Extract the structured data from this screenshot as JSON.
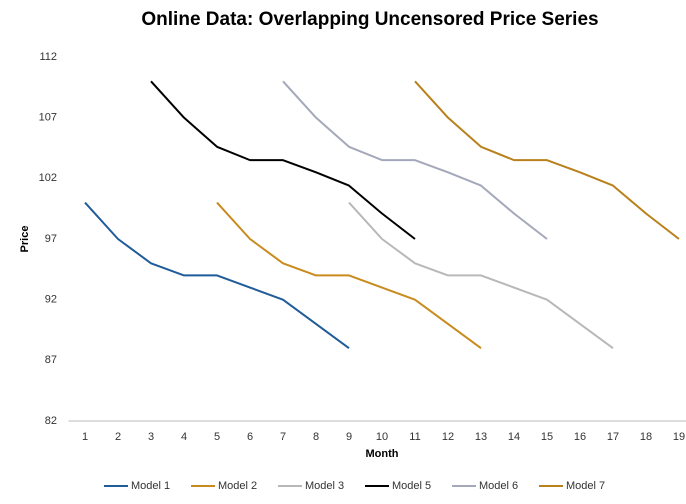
{
  "chart_data": {
    "type": "line",
    "title": "Online Data: Overlapping Uncensored Price Series",
    "x_label": "Month",
    "y_label": "Price",
    "categories": [
      "1",
      "2",
      "3",
      "4",
      "5",
      "6",
      "7",
      "8",
      "9",
      "10",
      "11",
      "12",
      "13",
      "14",
      "15",
      "16",
      "17",
      "18",
      "19"
    ],
    "ylim": [
      82,
      112
    ],
    "yticks": [
      82,
      87,
      92,
      97,
      102,
      107,
      112
    ],
    "grid": false,
    "legend": "bottom",
    "series": [
      {
        "name": "Model 1",
        "color": "#1f5c99",
        "values": [
          100,
          97,
          95,
          94,
          94,
          93,
          92,
          90,
          88,
          null,
          null,
          null,
          null,
          null,
          null,
          null,
          null,
          null,
          null
        ]
      },
      {
        "name": "Model 2",
        "color": "#c98a1e",
        "values": [
          null,
          null,
          null,
          null,
          100,
          97,
          95,
          94,
          94,
          93,
          92,
          90,
          88,
          null,
          null,
          null,
          null,
          null,
          null
        ]
      },
      {
        "name": "Model 3",
        "color": "#b8b8b8",
        "values": [
          null,
          null,
          null,
          null,
          null,
          null,
          null,
          null,
          100,
          97,
          95,
          94,
          94,
          93,
          92,
          90,
          88,
          null,
          null
        ]
      },
      {
        "name": "Model 5",
        "color": "#000000",
        "values": [
          null,
          null,
          110,
          107,
          104.6,
          103.5,
          103.5,
          102.5,
          101.4,
          99.1,
          97,
          null,
          null,
          null,
          null,
          null,
          null,
          null,
          null
        ]
      },
      {
        "name": "Model 6",
        "color": "#a4a8ba",
        "values": [
          null,
          null,
          null,
          null,
          null,
          null,
          110,
          107,
          104.6,
          103.5,
          103.5,
          102.5,
          101.4,
          99.1,
          97,
          null,
          null,
          null,
          null
        ]
      },
      {
        "name": "Model 7",
        "color": "#b9801c",
        "values": [
          null,
          null,
          null,
          null,
          null,
          null,
          null,
          null,
          null,
          null,
          110,
          107,
          104.6,
          103.5,
          103.5,
          102.5,
          101.4,
          99.1,
          97
        ]
      }
    ]
  }
}
